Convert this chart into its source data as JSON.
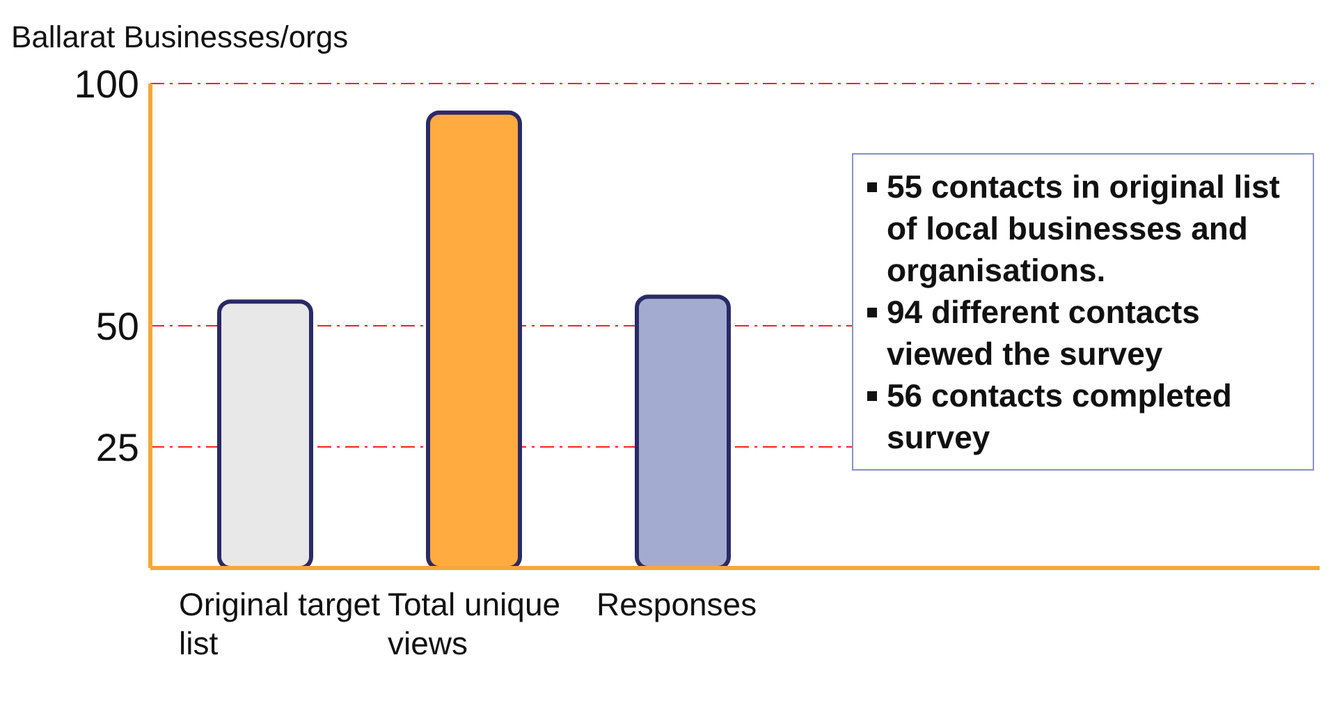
{
  "chart_data": {
    "type": "bar",
    "ylabel": "Ballarat Businesses/orgs",
    "categories": [
      "Original target list",
      "Total unique views",
      "Responses"
    ],
    "values": [
      55,
      94,
      56
    ],
    "colors": [
      "#e8e8e8",
      "#ffab40",
      "#a3acd0"
    ],
    "ylim": [
      0,
      100
    ],
    "yticks": [
      25,
      50,
      100
    ],
    "grid": "y",
    "annotations": [
      "55 contacts in original list of local businesses and organisations.",
      "94 different contacts viewed the survey",
      "56 contacts completed survey"
    ]
  }
}
